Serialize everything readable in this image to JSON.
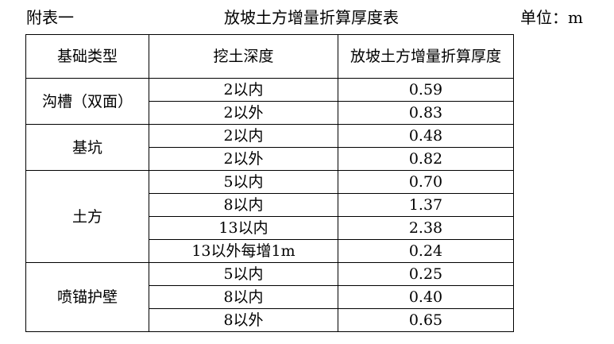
{
  "header": {
    "left_label": "附表一",
    "title": "放坡土方增量折算厚度表",
    "unit": "单位：m"
  },
  "table": {
    "columns": [
      "基础类型",
      "挖土深度",
      "放坡土方增量折算厚度"
    ],
    "groups": [
      {
        "type": "沟槽（双面）",
        "rows": [
          {
            "depth": "2以内",
            "value": "0.59"
          },
          {
            "depth": "2以外",
            "value": "0.83"
          }
        ]
      },
      {
        "type": "基坑",
        "rows": [
          {
            "depth": "2以内",
            "value": "0.48"
          },
          {
            "depth": "2以外",
            "value": "0.82"
          }
        ]
      },
      {
        "type": "土方",
        "rows": [
          {
            "depth": "5以内",
            "value": "0.70"
          },
          {
            "depth": "8以内",
            "value": "1.37"
          },
          {
            "depth": "13以内",
            "value": "2.38"
          },
          {
            "depth": "13以外每增1m",
            "value": "0.24"
          }
        ]
      },
      {
        "type": "喷锚护壁",
        "rows": [
          {
            "depth": "5以内",
            "value": "0.25"
          },
          {
            "depth": "8以内",
            "value": "0.40"
          },
          {
            "depth": "8以外",
            "value": "0.65"
          }
        ]
      }
    ]
  }
}
